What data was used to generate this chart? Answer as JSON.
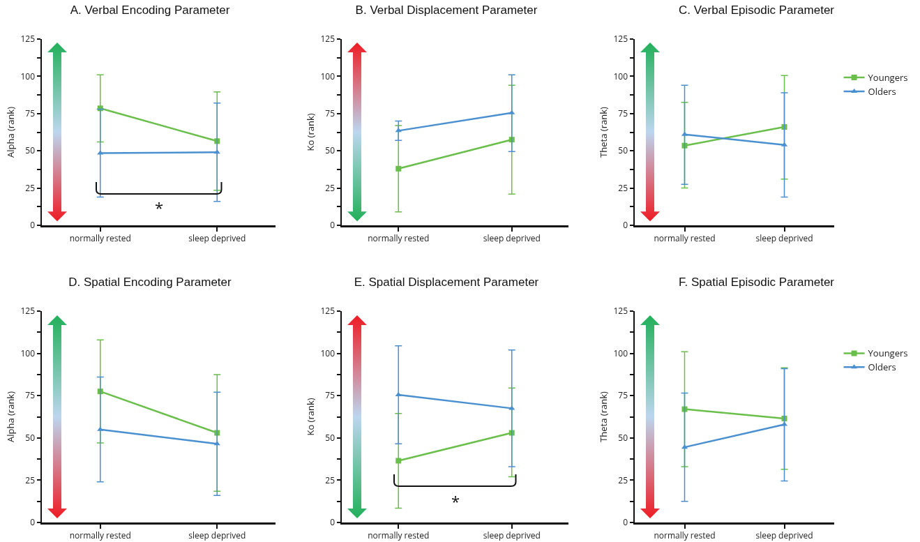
{
  "chart_data": [
    {
      "type": "line",
      "title": "A. Verbal Encoding Parameter",
      "ylabel": "Alpha (rank)",
      "categories": [
        "normally rested",
        "sleep deprived"
      ],
      "ylim": [
        0,
        125
      ],
      "yticks": [
        0,
        {
          "value": 12.5,
          "label": null
        },
        25,
        {
          "value": 37.5,
          "label": null
        },
        50,
        {
          "value": 62.5,
          "label": null
        },
        75,
        {
          "value": 87.5,
          "label": null
        },
        100,
        {
          "value": 112.5,
          "label": null
        },
        125
      ],
      "grid": false,
      "legend": false,
      "annotations": [
        "*"
      ],
      "series": [
        {
          "color": "#6abf4b",
          "marker": "square",
          "values": [
            78.5,
            56.5
          ],
          "errors": [
            [
              56,
              101
            ],
            [
              23.5,
              89.5
            ]
          ]
        },
        {
          "color": "#4a90d0",
          "marker": "triangle",
          "values": [
            48.5,
            49
          ],
          "errors": [
            [
              19,
              78
            ],
            [
              16,
              82
            ]
          ]
        }
      ]
    },
    {
      "type": "line",
      "title": "B. Verbal Displacement Parameter",
      "ylabel": "Ko (rank)",
      "categories": [
        "normally rested",
        "sleep deprived"
      ],
      "ylim": [
        0,
        125
      ],
      "yticks": [
        0,
        {
          "value": 12.5,
          "label": null
        },
        25,
        {
          "value": 37.5,
          "label": null
        },
        50,
        {
          "value": 62.5,
          "label": null
        },
        75,
        {
          "value": 87.5,
          "label": null
        },
        100,
        {
          "value": 112.5,
          "label": null
        },
        125
      ],
      "grid": false,
      "legend": false,
      "series": [
        {
          "color": "#6abf4b",
          "marker": "square",
          "values": [
            38,
            57.5
          ],
          "errors": [
            [
              9,
              67
            ],
            [
              21,
              94
            ]
          ]
        },
        {
          "color": "#4a90d0",
          "marker": "triangle",
          "values": [
            63.5,
            75.5
          ],
          "errors": [
            [
              57,
              70
            ],
            [
              49.5,
              101
            ]
          ]
        }
      ]
    },
    {
      "type": "line",
      "title": "C. Verbal Episodic Parameter",
      "ylabel": "Theta (rank)",
      "categories": [
        "normally rested",
        "sleep deprived"
      ],
      "ylim": [
        0,
        125
      ],
      "yticks": [
        0,
        {
          "value": 12.5,
          "label": null
        },
        25,
        {
          "value": 37.5,
          "label": null
        },
        50,
        {
          "value": 62.5,
          "label": null
        },
        75,
        {
          "value": 87.5,
          "label": null
        },
        100,
        {
          "value": 112.5,
          "label": null
        },
        125
      ],
      "grid": false,
      "legend": "right",
      "series": [
        {
          "name": "Youngers",
          "color": "#6abf4b",
          "marker": "square",
          "values": [
            53.5,
            66
          ],
          "errors": [
            [
              25,
              82.5
            ],
            [
              31,
              100.5
            ]
          ]
        },
        {
          "name": "Olders",
          "color": "#4a90d0",
          "marker": "triangle",
          "values": [
            61,
            54
          ],
          "errors": [
            [
              27.5,
              94
            ],
            [
              19,
              89
            ]
          ]
        }
      ]
    },
    {
      "type": "line",
      "title": "D. Spatial Encoding Parameter",
      "ylabel": "Alpha (rank)",
      "categories": [
        "normally rested",
        "sleep deprived"
      ],
      "ylim": [
        0,
        125
      ],
      "yticks": [
        0,
        {
          "value": 12.5,
          "label": null
        },
        25,
        {
          "value": 37.5,
          "label": null
        },
        50,
        {
          "value": 62.5,
          "label": null
        },
        75,
        {
          "value": 87.5,
          "label": null
        },
        100,
        {
          "value": 112.5,
          "label": null
        },
        125
      ],
      "grid": false,
      "legend": false,
      "series": [
        {
          "color": "#6abf4b",
          "marker": "square",
          "values": [
            77.5,
            53
          ],
          "errors": [
            [
              47,
              108
            ],
            [
              18.5,
              87.5
            ]
          ]
        },
        {
          "color": "#4a90d0",
          "marker": "triangle",
          "values": [
            55,
            46.5
          ],
          "errors": [
            [
              24,
              86
            ],
            [
              16,
              77
            ]
          ]
        }
      ]
    },
    {
      "type": "line",
      "title": "E. Spatial Displacement Parameter",
      "ylabel": "Ko (rank)",
      "categories": [
        "normally rested",
        "sleep deprived"
      ],
      "ylim": [
        0,
        125
      ],
      "yticks": [
        0,
        {
          "value": 12.5,
          "label": null
        },
        25,
        {
          "value": 37.5,
          "label": null
        },
        50,
        {
          "value": 62.5,
          "label": null
        },
        75,
        {
          "value": 87.5,
          "label": null
        },
        100,
        {
          "value": 112.5,
          "label": null
        },
        125
      ],
      "grid": false,
      "legend": false,
      "annotations": [
        "*"
      ],
      "series": [
        {
          "color": "#6abf4b",
          "marker": "square",
          "values": [
            36.5,
            53
          ],
          "errors": [
            [
              8.5,
              64.5
            ],
            [
              27,
              79.5
            ]
          ]
        },
        {
          "color": "#4a90d0",
          "marker": "triangle",
          "values": [
            75.5,
            67.5
          ],
          "errors": [
            [
              46.5,
              104.5
            ],
            [
              33,
              102
            ]
          ]
        }
      ]
    },
    {
      "type": "line",
      "title": "F. Spatial Episodic Parameter",
      "ylabel": "Theta (rank)",
      "categories": [
        "normally rested",
        "sleep deprived"
      ],
      "ylim": [
        0,
        125
      ],
      "yticks": [
        0,
        {
          "value": 12.5,
          "label": null
        },
        25,
        {
          "value": 37.5,
          "label": null
        },
        50,
        {
          "value": 62.5,
          "label": null
        },
        75,
        {
          "value": 87.5,
          "label": null
        },
        100,
        {
          "value": 112.5,
          "label": null
        },
        125
      ],
      "grid": false,
      "legend": "right",
      "series": [
        {
          "name": "Youngers",
          "color": "#6abf4b",
          "marker": "square",
          "values": [
            67,
            61.5
          ],
          "errors": [
            [
              33,
              101
            ],
            [
              31.5,
              91.5
            ]
          ]
        },
        {
          "name": "Olders",
          "color": "#4a90d0",
          "marker": "triangle",
          "values": [
            44.5,
            58
          ],
          "errors": [
            [
              12.5,
              76.5
            ],
            [
              24.5,
              91
            ]
          ]
        }
      ]
    }
  ]
}
